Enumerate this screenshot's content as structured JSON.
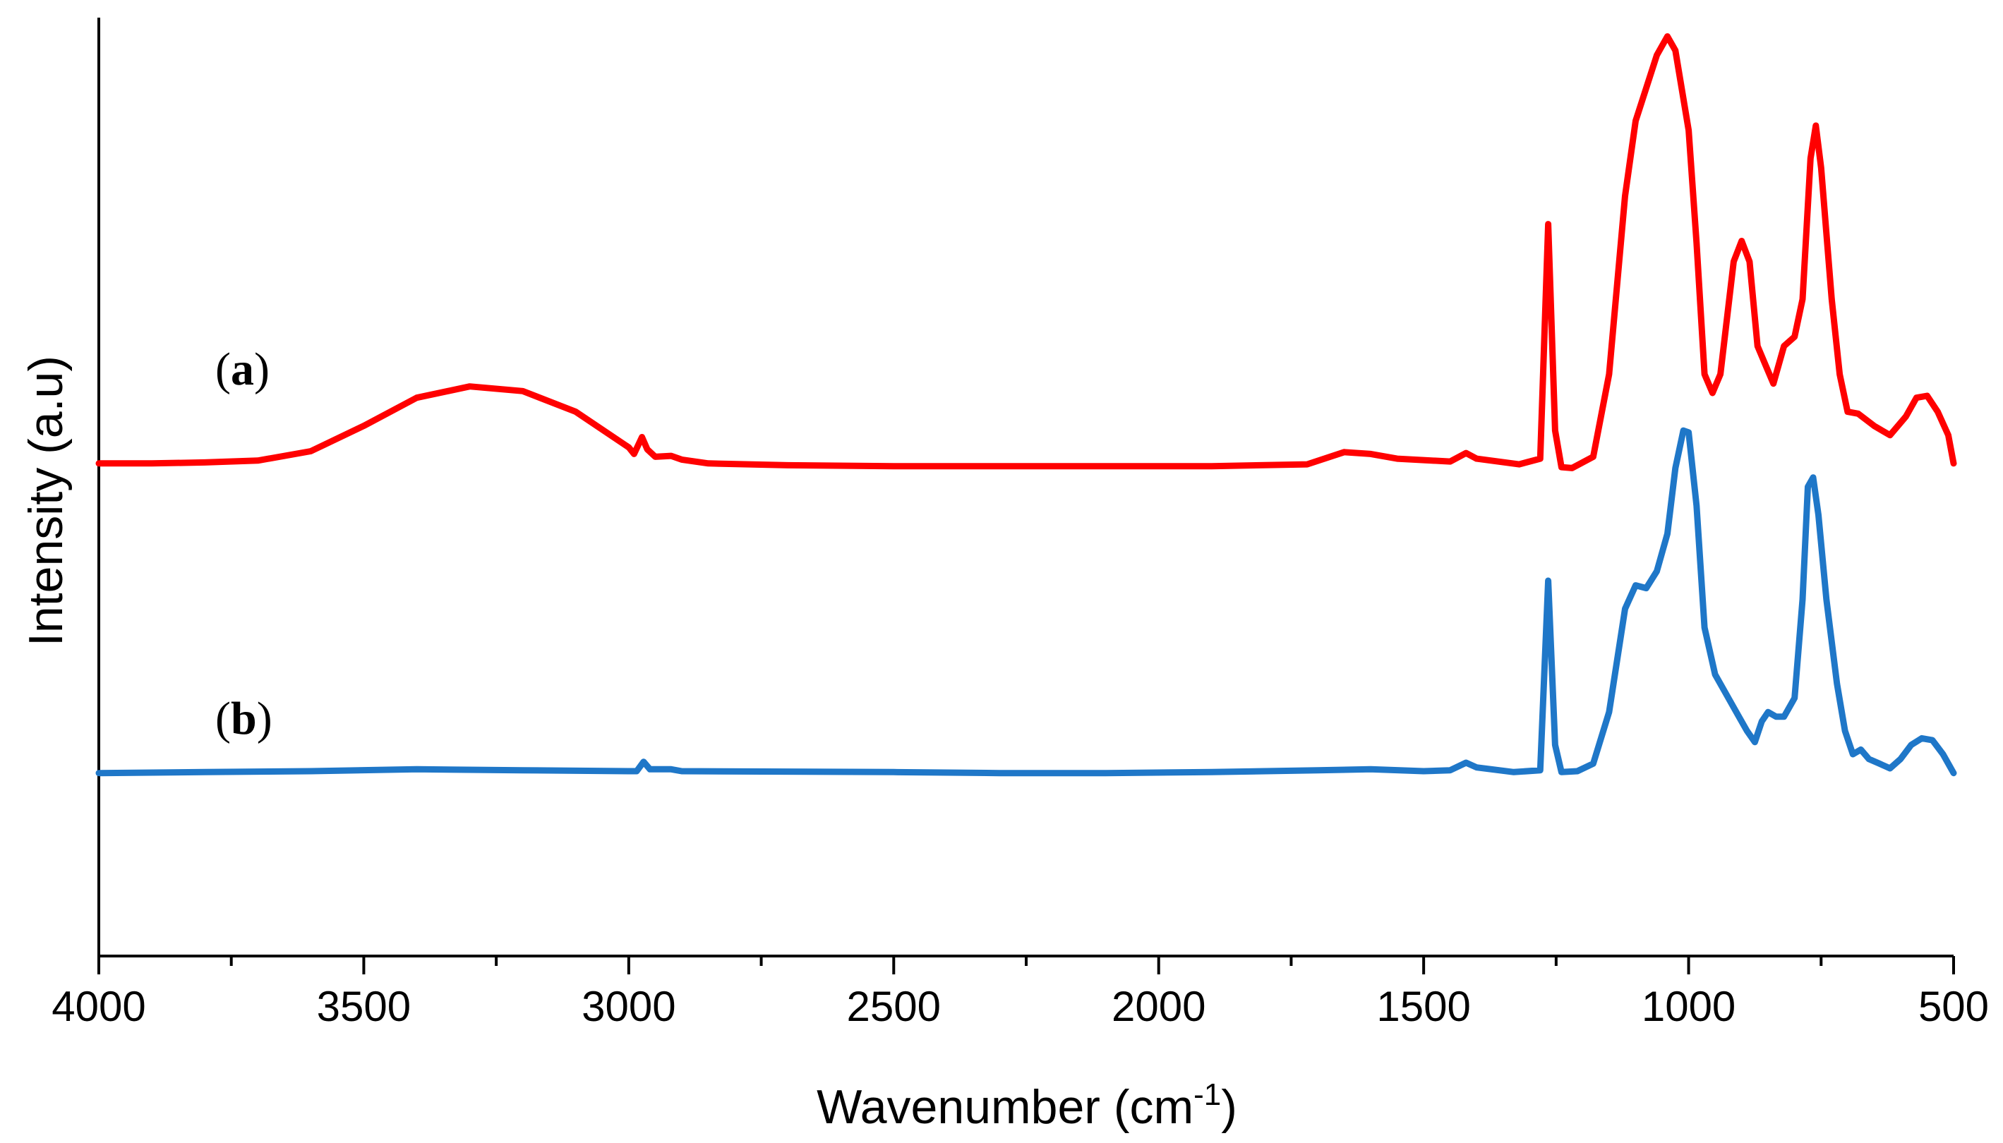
{
  "chart_data": {
    "type": "line",
    "title": "",
    "xlabel": "Wavenumber (cm",
    "xlabel_superscript": "-1",
    "xlabel_suffix": ")",
    "ylabel": "Intensity (a.u)",
    "xlim": [
      4000,
      500
    ],
    "ylim": [
      0,
      1
    ],
    "x_reversed": true,
    "grid": false,
    "x_major_ticks": [
      4000,
      3500,
      3000,
      2500,
      2000,
      1500,
      1000,
      500
    ],
    "x_tick_labels": [
      "4000",
      "3500",
      "3000",
      "2500",
      "2000",
      "1500",
      "1000",
      "500"
    ],
    "x_minor_ticks": [
      3750,
      3250,
      2750,
      2250,
      1750,
      1250,
      750
    ],
    "series": [
      {
        "name": "(a)",
        "label_letter": "a",
        "color": "#ff0000",
        "points": [
          [
            4000,
            0.525
          ],
          [
            3900,
            0.525
          ],
          [
            3800,
            0.526
          ],
          [
            3700,
            0.528
          ],
          [
            3600,
            0.538
          ],
          [
            3500,
            0.565
          ],
          [
            3400,
            0.595
          ],
          [
            3300,
            0.607
          ],
          [
            3200,
            0.602
          ],
          [
            3100,
            0.58
          ],
          [
            3000,
            0.542
          ],
          [
            2990,
            0.535
          ],
          [
            2975,
            0.553
          ],
          [
            2965,
            0.54
          ],
          [
            2950,
            0.532
          ],
          [
            2920,
            0.533
          ],
          [
            2900,
            0.529
          ],
          [
            2850,
            0.525
          ],
          [
            2700,
            0.523
          ],
          [
            2500,
            0.522
          ],
          [
            2300,
            0.522
          ],
          [
            2100,
            0.522
          ],
          [
            1900,
            0.522
          ],
          [
            1720,
            0.524
          ],
          [
            1650,
            0.537
          ],
          [
            1600,
            0.535
          ],
          [
            1550,
            0.53
          ],
          [
            1450,
            0.527
          ],
          [
            1420,
            0.536
          ],
          [
            1400,
            0.53
          ],
          [
            1320,
            0.524
          ],
          [
            1280,
            0.53
          ],
          [
            1265,
            0.78
          ],
          [
            1252,
            0.56
          ],
          [
            1240,
            0.521
          ],
          [
            1220,
            0.52
          ],
          [
            1180,
            0.532
          ],
          [
            1150,
            0.62
          ],
          [
            1120,
            0.81
          ],
          [
            1100,
            0.89
          ],
          [
            1060,
            0.96
          ],
          [
            1040,
            0.98
          ],
          [
            1025,
            0.965
          ],
          [
            1000,
            0.88
          ],
          [
            985,
            0.76
          ],
          [
            970,
            0.62
          ],
          [
            955,
            0.6
          ],
          [
            940,
            0.62
          ],
          [
            915,
            0.74
          ],
          [
            900,
            0.762
          ],
          [
            885,
            0.74
          ],
          [
            870,
            0.65
          ],
          [
            855,
            0.63
          ],
          [
            840,
            0.61
          ],
          [
            820,
            0.65
          ],
          [
            800,
            0.66
          ],
          [
            785,
            0.7
          ],
          [
            770,
            0.85
          ],
          [
            760,
            0.885
          ],
          [
            750,
            0.84
          ],
          [
            730,
            0.7
          ],
          [
            715,
            0.62
          ],
          [
            700,
            0.58
          ],
          [
            680,
            0.578
          ],
          [
            650,
            0.565
          ],
          [
            620,
            0.555
          ],
          [
            590,
            0.575
          ],
          [
            570,
            0.595
          ],
          [
            550,
            0.597
          ],
          [
            530,
            0.58
          ],
          [
            510,
            0.555
          ],
          [
            500,
            0.525
          ]
        ]
      },
      {
        "name": "(b)",
        "label_letter": "b",
        "color": "#1f77c8",
        "points": [
          [
            4000,
            0.195
          ],
          [
            3800,
            0.196
          ],
          [
            3600,
            0.197
          ],
          [
            3400,
            0.199
          ],
          [
            3200,
            0.198
          ],
          [
            3000,
            0.197
          ],
          [
            2985,
            0.197
          ],
          [
            2972,
            0.207
          ],
          [
            2960,
            0.199
          ],
          [
            2920,
            0.199
          ],
          [
            2900,
            0.197
          ],
          [
            2500,
            0.196
          ],
          [
            2300,
            0.195
          ],
          [
            2100,
            0.195
          ],
          [
            1900,
            0.196
          ],
          [
            1700,
            0.198
          ],
          [
            1600,
            0.199
          ],
          [
            1500,
            0.197
          ],
          [
            1450,
            0.198
          ],
          [
            1420,
            0.206
          ],
          [
            1400,
            0.201
          ],
          [
            1330,
            0.196
          ],
          [
            1280,
            0.198
          ],
          [
            1265,
            0.4
          ],
          [
            1252,
            0.225
          ],
          [
            1240,
            0.196
          ],
          [
            1210,
            0.197
          ],
          [
            1180,
            0.205
          ],
          [
            1150,
            0.26
          ],
          [
            1120,
            0.37
          ],
          [
            1100,
            0.395
          ],
          [
            1080,
            0.392
          ],
          [
            1060,
            0.41
          ],
          [
            1040,
            0.45
          ],
          [
            1025,
            0.52
          ],
          [
            1010,
            0.56
          ],
          [
            1000,
            0.558
          ],
          [
            985,
            0.48
          ],
          [
            970,
            0.35
          ],
          [
            950,
            0.3
          ],
          [
            930,
            0.28
          ],
          [
            910,
            0.26
          ],
          [
            890,
            0.24
          ],
          [
            875,
            0.228
          ],
          [
            862,
            0.25
          ],
          [
            850,
            0.26
          ],
          [
            835,
            0.255
          ],
          [
            820,
            0.255
          ],
          [
            800,
            0.275
          ],
          [
            785,
            0.38
          ],
          [
            775,
            0.5
          ],
          [
            765,
            0.51
          ],
          [
            755,
            0.47
          ],
          [
            740,
            0.38
          ],
          [
            720,
            0.29
          ],
          [
            705,
            0.24
          ],
          [
            690,
            0.215
          ],
          [
            675,
            0.22
          ],
          [
            660,
            0.21
          ],
          [
            640,
            0.205
          ],
          [
            620,
            0.2
          ],
          [
            600,
            0.21
          ],
          [
            580,
            0.225
          ],
          [
            560,
            0.232
          ],
          [
            540,
            0.23
          ],
          [
            520,
            0.215
          ],
          [
            500,
            0.195
          ]
        ]
      }
    ]
  }
}
